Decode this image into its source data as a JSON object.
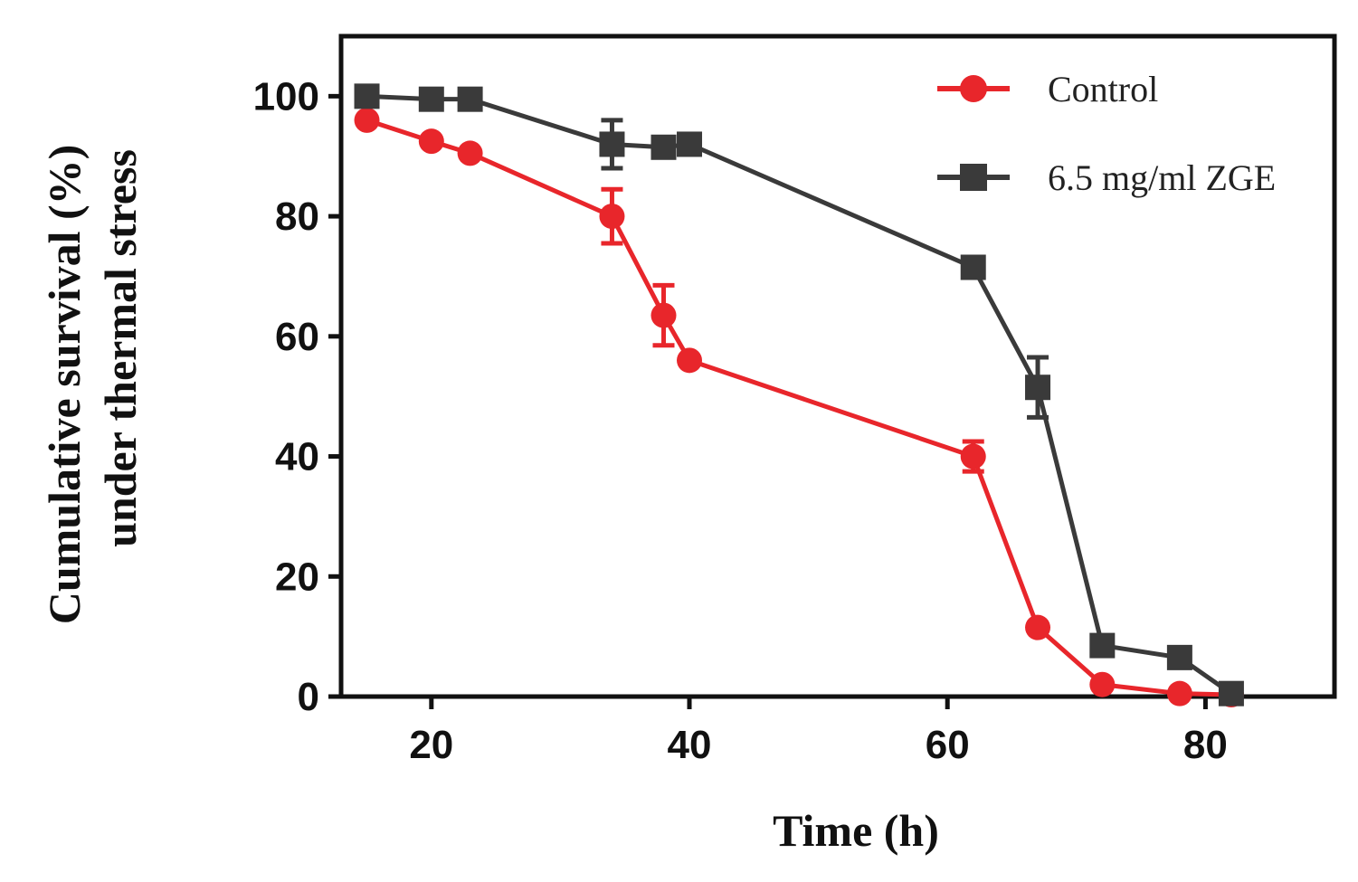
{
  "chart_data": {
    "type": "line",
    "title": "",
    "xlabel": "Time (h)",
    "ylabel_line1": "Cumulative survival (%)",
    "ylabel_line2": "under thermal stress",
    "xlim": [
      13,
      90
    ],
    "ylim": [
      0,
      110
    ],
    "xticks": [
      20,
      40,
      60,
      80
    ],
    "yticks": [
      0,
      20,
      40,
      60,
      80,
      100
    ],
    "legend_position": "top-right",
    "series": [
      {
        "name": "Control",
        "color": "#e8262b",
        "marker": "circle",
        "x": [
          15,
          20,
          23,
          34,
          38,
          40,
          62,
          67,
          72,
          78,
          82
        ],
        "y": [
          96,
          92.5,
          90.5,
          80,
          63.5,
          56,
          40,
          11.5,
          2,
          0.5,
          0.3
        ],
        "err": [
          0,
          0,
          0,
          4.5,
          5,
          0,
          2.5,
          0,
          0,
          0,
          0
        ]
      },
      {
        "name": "6.5 mg/ml ZGE",
        "color": "#3a3a3a",
        "marker": "square",
        "x": [
          15,
          20,
          23,
          34,
          38,
          40,
          62,
          67,
          72,
          78,
          82
        ],
        "y": [
          100,
          99.5,
          99.5,
          92,
          91.5,
          92,
          71.5,
          51.5,
          8.5,
          6.5,
          0.5
        ],
        "err": [
          0,
          0,
          0,
          4,
          0,
          0,
          0,
          5,
          0,
          0,
          0
        ]
      }
    ]
  }
}
